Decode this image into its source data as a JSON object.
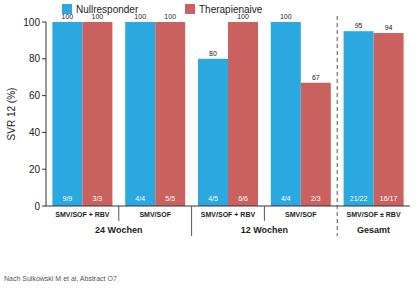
{
  "chart_data": {
    "type": "bar",
    "y_label": "SVR 12 (%)",
    "categories": [
      "SMV/SOF + RBV",
      "SMV/SOF",
      "SMV/SOF + RBV",
      "SMV/SOF",
      "SMV/SOF ± RBV"
    ],
    "groups": [
      {
        "label": "24 Wochen",
        "size": 2
      },
      {
        "label": "12 Wochen",
        "size": 2
      },
      {
        "label": "Gesamt",
        "size": 1
      }
    ],
    "series": [
      {
        "name": "Nullresponder",
        "color": "#2aa8df",
        "values": [
          100,
          100,
          80,
          100,
          95
        ],
        "fraction_labels": [
          "9/9",
          "4/4",
          "4/5",
          "4/4",
          "21/22"
        ]
      },
      {
        "name": "Therapienaive",
        "color": "#c9625f",
        "values": [
          100,
          100,
          100,
          67,
          94
        ],
        "fraction_labels": [
          "3/3",
          "5/5",
          "6/6",
          "2/3",
          "16/17"
        ]
      }
    ],
    "ylim": [
      0,
      100
    ],
    "yticks": [
      0,
      20,
      40,
      60,
      80,
      100
    ],
    "grid": false,
    "legend": "top",
    "data_labels": true,
    "source": "Nach Sulkowski M et al, Abstract O7"
  }
}
